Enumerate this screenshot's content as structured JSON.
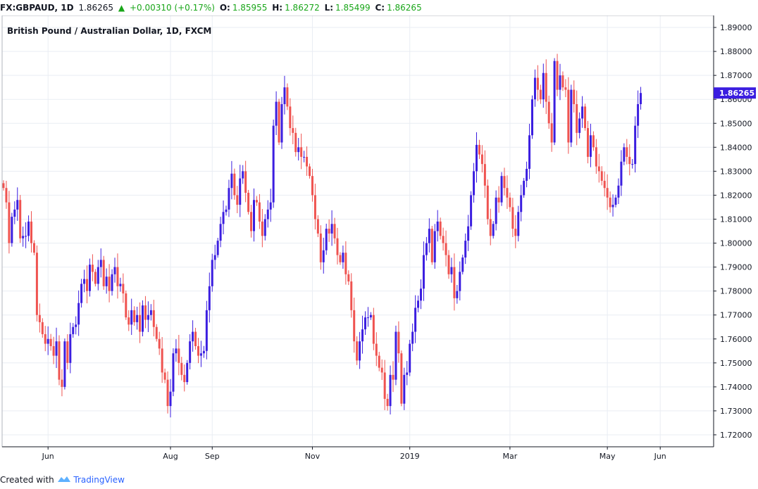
{
  "header": {
    "symbol": "FX:GBPAUD, 1D",
    "last": "1.86265",
    "change": "+0.00310 (+0.17%)",
    "o_label": "O:",
    "o_value": "1.85955",
    "h_label": "H:",
    "h_value": "1.86272",
    "l_label": "L:",
    "l_value": "1.85499",
    "c_label": "C:",
    "c_value": "1.86265"
  },
  "footer": {
    "created_with": "Created with",
    "brand": "TradingView"
  },
  "colors": {
    "up": "#3b1ee0",
    "down": "#ef5350",
    "grid": "#e9edf3",
    "axis": "#131722",
    "price_badge": "#3b1ee0"
  },
  "chart_data": {
    "type": "candlestick",
    "title": "British Pound / Australian Dollar, 1D, FXCM",
    "ylim": [
      1.715,
      1.895
    ],
    "y_ticks": [
      "1.72000",
      "1.73000",
      "1.74000",
      "1.75000",
      "1.76000",
      "1.77000",
      "1.78000",
      "1.79000",
      "1.80000",
      "1.81000",
      "1.82000",
      "1.83000",
      "1.84000",
      "1.85000",
      "1.86000",
      "1.87000",
      "1.88000",
      "1.89000"
    ],
    "x_labels": [
      {
        "label": "Jun",
        "bar": 16
      },
      {
        "label": "Aug",
        "bar": 60
      },
      {
        "label": "Sep",
        "bar": 75
      },
      {
        "label": "Nov",
        "bar": 111
      },
      {
        "label": "2019",
        "bar": 146
      },
      {
        "label": "Mar",
        "bar": 182
      },
      {
        "label": "May",
        "bar": 217
      },
      {
        "label": "Jun",
        "bar": 236
      }
    ],
    "current_price": "1.86265",
    "current_value": 1.86265,
    "grid": true,
    "closes": [
      1.823,
      1.817,
      1.8,
      1.811,
      1.814,
      1.818,
      1.802,
      1.803,
      1.803,
      1.809,
      1.8,
      1.796,
      1.77,
      1.767,
      1.762,
      1.758,
      1.76,
      1.757,
      1.753,
      1.759,
      1.743,
      1.74,
      1.759,
      1.75,
      1.762,
      1.765,
      1.766,
      1.775,
      1.783,
      1.785,
      1.78,
      1.791,
      1.788,
      1.783,
      1.79,
      1.793,
      1.782,
      1.786,
      1.78,
      1.787,
      1.79,
      1.782,
      1.783,
      1.779,
      1.769,
      1.766,
      1.772,
      1.767,
      1.77,
      1.763,
      1.774,
      1.768,
      1.77,
      1.772,
      1.765,
      1.76,
      1.756,
      1.746,
      1.743,
      1.732,
      1.738,
      1.754,
      1.756,
      1.75,
      1.745,
      1.742,
      1.75,
      1.759,
      1.763,
      1.757,
      1.753,
      1.754,
      1.755,
      1.772,
      1.782,
      1.793,
      1.795,
      1.801,
      1.808,
      1.813,
      1.814,
      1.823,
      1.829,
      1.82,
      1.816,
      1.827,
      1.83,
      1.821,
      1.813,
      1.805,
      1.818,
      1.817,
      1.809,
      1.803,
      1.81,
      1.814,
      1.817,
      1.849,
      1.859,
      1.842,
      1.858,
      1.865,
      1.857,
      1.848,
      1.846,
      1.838,
      1.84,
      1.836,
      1.836,
      1.832,
      1.828,
      1.82,
      1.81,
      1.804,
      1.792,
      1.797,
      1.806,
      1.804,
      1.808,
      1.802,
      1.795,
      1.792,
      1.796,
      1.787,
      1.784,
      1.772,
      1.759,
      1.751,
      1.759,
      1.764,
      1.769,
      1.769,
      1.77,
      1.758,
      1.753,
      1.748,
      1.746,
      1.735,
      1.732,
      1.745,
      1.743,
      1.763,
      1.754,
      1.733,
      1.745,
      1.746,
      1.758,
      1.763,
      1.773,
      1.776,
      1.781,
      1.795,
      1.8,
      1.806,
      1.792,
      1.805,
      1.809,
      1.803,
      1.8,
      1.795,
      1.787,
      1.79,
      1.777,
      1.78,
      1.788,
      1.794,
      1.801,
      1.807,
      1.82,
      1.83,
      1.841,
      1.837,
      1.833,
      1.824,
      1.81,
      1.803,
      1.808,
      1.819,
      1.817,
      1.828,
      1.823,
      1.819,
      1.815,
      1.806,
      1.803,
      1.813,
      1.82,
      1.826,
      1.831,
      1.845,
      1.86,
      1.869,
      1.864,
      1.86,
      1.871,
      1.859,
      1.85,
      1.842,
      1.876,
      1.864,
      1.87,
      1.865,
      1.864,
      1.842,
      1.864,
      1.858,
      1.846,
      1.852,
      1.857,
      1.848,
      1.836,
      1.845,
      1.84,
      1.832,
      1.83,
      1.826,
      1.823,
      1.819,
      1.815,
      1.816,
      1.819,
      1.824,
      1.834,
      1.84,
      1.836,
      1.833,
      1.833,
      1.849,
      1.858,
      1.86265
    ]
  }
}
